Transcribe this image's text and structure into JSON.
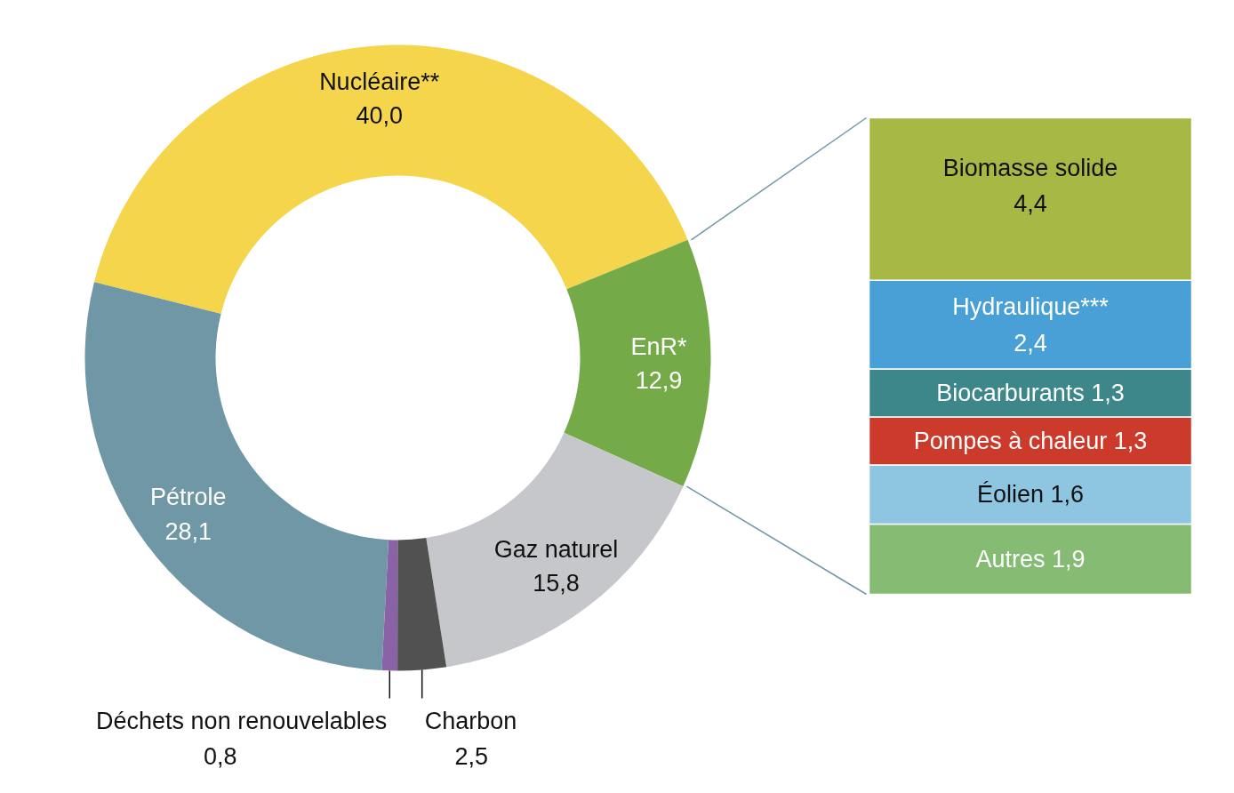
{
  "chart_data": [
    {
      "type": "donut",
      "categories": [
        "Nucléaire**",
        "EnR*",
        "Gaz naturel",
        "Charbon",
        "Déchets non renouvelables",
        "Pétrole"
      ],
      "values": [
        40.0,
        12.9,
        15.8,
        2.5,
        0.8,
        28.1
      ],
      "value_labels": [
        "40,0",
        "12,9",
        "15,8",
        "2,5",
        "0,8",
        "28,1"
      ],
      "colors": [
        "#f4d54c",
        "#74aa48",
        "#c6c7ca",
        "#505150",
        "#8a62a6",
        "#6f97a5"
      ]
    },
    {
      "type": "bar",
      "stacked": true,
      "categories": [
        null
      ],
      "series": [
        {
          "name": "Autres",
          "color": "#85bb72",
          "values": [
            1.9
          ],
          "value_labels": [
            "1,9"
          ]
        },
        {
          "name": "Éolien",
          "color": "#8ec6e2",
          "values": [
            1.6
          ],
          "value_labels": [
            "1,6"
          ]
        },
        {
          "name": "Pompes à chaleur",
          "color": "#cc3a2b",
          "values": [
            1.3
          ],
          "value_labels": [
            "1,3"
          ]
        },
        {
          "name": "Biocarburants",
          "color": "#3d878a",
          "values": [
            1.3
          ],
          "value_labels": [
            "1,3"
          ]
        },
        {
          "name": "Hydraulique***",
          "color": "#48a0d6",
          "values": [
            2.4
          ],
          "value_labels": [
            "2,4"
          ]
        },
        {
          "name": "Biomasse solide",
          "color": "#a8b845",
          "values": [
            4.4
          ],
          "value_labels": [
            "4,4"
          ]
        }
      ]
    }
  ]
}
